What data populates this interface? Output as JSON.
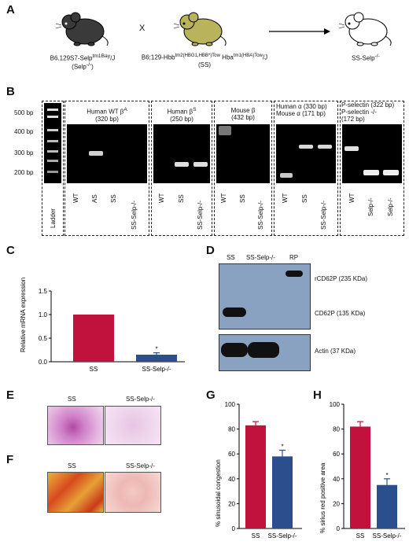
{
  "panels": {
    "a": "A",
    "b": "B",
    "c": "C",
    "d": "D",
    "e": "E",
    "f": "F",
    "g": "G",
    "h": "H"
  },
  "panel_a": {
    "mouse1_line1": "B6.129S7-Selp",
    "mouse1_sup": "tm1Bay",
    "mouse1_suffix": "/J",
    "mouse1_line2": "(Selp",
    "mouse1_line2_sup": "-/-",
    "mouse1_line2_end": ")",
    "cross": "X",
    "mouse2_line1": "B6;129-Hbb",
    "mouse2_sup1": "tm2(HBG1,HBB*)Tow",
    "mouse2_mid": " Hba",
    "mouse2_sup2": "tm1(HBA)Tow",
    "mouse2_suffix": "/J",
    "mouse2_line2": "(SS)",
    "mouse3_line1": "SS-Selp",
    "mouse3_sup": "-/-",
    "colors": {
      "mouse1": "#3a3a3a",
      "mouse2": "#b9b35c",
      "mouse3": "#ffffff"
    }
  },
  "panel_b": {
    "size_markers": [
      "500 bp",
      "400 bp",
      "300 bp",
      "200 bp"
    ],
    "groups": [
      {
        "title1": "Human WT β",
        "title1_sup": "A",
        "title2": "(320 bp)",
        "lanes": [
          "WT",
          "AS",
          "SS",
          "SS-Selp-/-"
        ]
      },
      {
        "title1": "Human β",
        "title1_sup": "S",
        "title2": "(250 bp)",
        "lanes": [
          "WT",
          "SS",
          "SS-Selp-/-"
        ]
      },
      {
        "title1": "Mouse β",
        "title1_sup": "",
        "title2": "(432 bp)",
        "lanes": [
          "WT",
          "SS",
          "SS-Selp-/-"
        ]
      },
      {
        "title1": "Human α (330 bp)",
        "title1_sup": "",
        "title2": "Mouse α (171 bp)",
        "lanes": [
          "WT",
          "SS",
          "SS-Selp-/-"
        ]
      },
      {
        "title1": "P-selectin (322 bp)",
        "title1_sup": "",
        "title2": "P-selectin -/-",
        "title3": "(172 bp)",
        "lanes": [
          "WT",
          "Selp-/-",
          "Selp-/-"
        ]
      }
    ],
    "ladder_label": "Ladder"
  },
  "panel_c": {
    "ylabel": "Relative mRNA expression",
    "yticks": [
      "0.0",
      "0.5",
      "1.0",
      "1.5"
    ],
    "categories": [
      "SS",
      "SS-Selp-/-"
    ],
    "star": "*"
  },
  "panel_d": {
    "lanes": [
      "SS",
      "SS-Selp-/-",
      "RP"
    ],
    "labels": [
      "rCD62P (235 KDa)",
      "CD62P (135 KDa)",
      "Actin (37 KDa)"
    ]
  },
  "panel_e": {
    "labels": [
      "SS",
      "SS-Selp-/-"
    ]
  },
  "panel_f": {
    "labels": [
      "SS",
      "SS-Selp-/-"
    ]
  },
  "panel_g": {
    "ylabel": "% sinusoidal congestion",
    "yticks": [
      "0",
      "20",
      "40",
      "60",
      "80",
      "100"
    ],
    "categories": [
      "SS",
      "SS-Selp-/-"
    ],
    "star": "*"
  },
  "panel_h": {
    "ylabel": "% sirius red positive area",
    "yticks": [
      "0",
      "20",
      "40",
      "60",
      "80",
      "100"
    ],
    "categories": [
      "SS",
      "SS-Selp-/-"
    ],
    "star": "*"
  },
  "chart_data": [
    {
      "type": "bar",
      "panel": "C",
      "categories": [
        "SS",
        "SS-Selp-/-"
      ],
      "values": [
        1.0,
        0.15
      ],
      "errors": [
        0,
        0.04
      ],
      "colors": [
        "#c0123c",
        "#2b4f8c"
      ],
      "ylabel": "Relative mRNA expression",
      "ylim": [
        0,
        1.5
      ]
    },
    {
      "type": "bar",
      "panel": "G",
      "categories": [
        "SS",
        "SS-Selp-/-"
      ],
      "values": [
        83,
        58
      ],
      "errors": [
        3,
        5
      ],
      "colors": [
        "#c0123c",
        "#2b4f8c"
      ],
      "ylabel": "% sinusoidal congestion",
      "ylim": [
        0,
        100
      ]
    },
    {
      "type": "bar",
      "panel": "H",
      "categories": [
        "SS",
        "SS-Selp-/-"
      ],
      "values": [
        82,
        35
      ],
      "errors": [
        4,
        5
      ],
      "colors": [
        "#c0123c",
        "#2b4f8c"
      ],
      "ylabel": "% sirius red positive area",
      "ylim": [
        0,
        100
      ]
    }
  ]
}
